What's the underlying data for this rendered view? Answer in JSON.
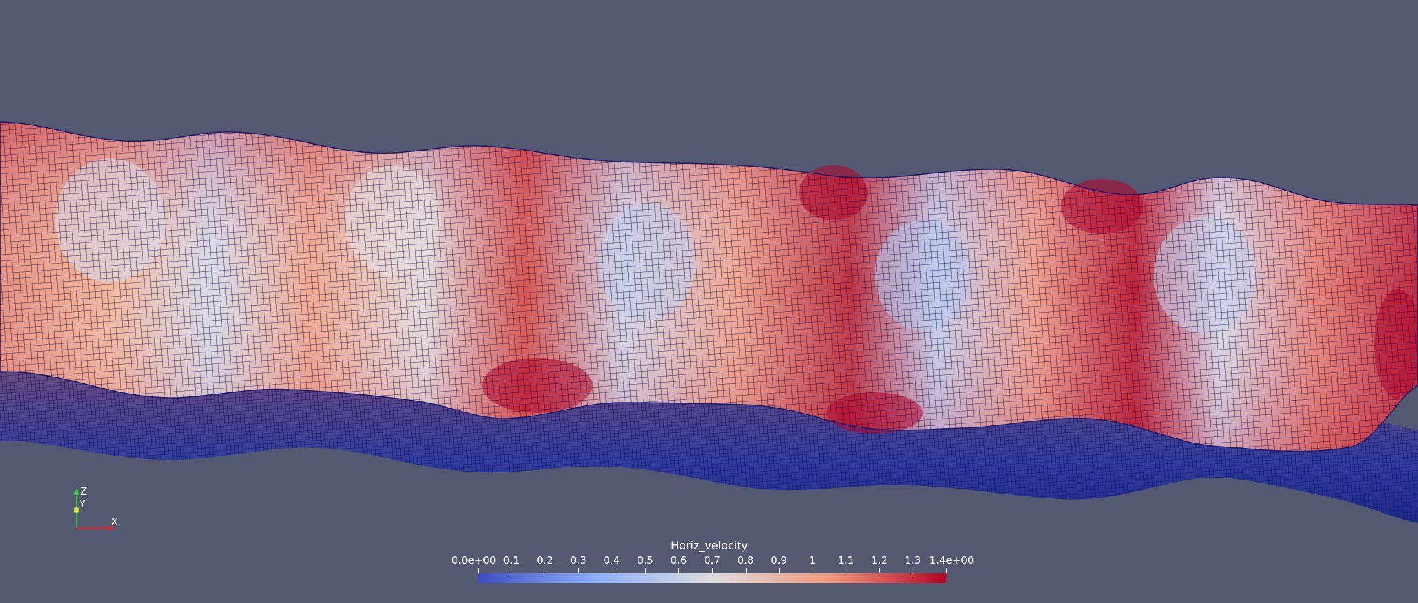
{
  "scene": {
    "background_color": "#525970",
    "mesh_line_color": "#1a1a70"
  },
  "colorbar": {
    "title": "Horiz_velocity",
    "min": 0.0,
    "max": 1.4,
    "tick_labels": [
      "0.0e+00",
      "0.1",
      "0.2",
      "0.3",
      "0.4",
      "0.5",
      "0.6",
      "0.7",
      "0.8",
      "0.9",
      "1",
      "1.1",
      "1.2",
      "1.3",
      "1.4e+00"
    ],
    "colormap": [
      "#3b4cc0",
      "#8db0fe",
      "#dddddd",
      "#f49a7b",
      "#b40426"
    ]
  },
  "axes": {
    "z_label": "Z",
    "y_label": "Y",
    "x_label": "X",
    "z_color": "#2ecc40",
    "y_color": "#d4e83a",
    "x_color": "#d62728"
  }
}
